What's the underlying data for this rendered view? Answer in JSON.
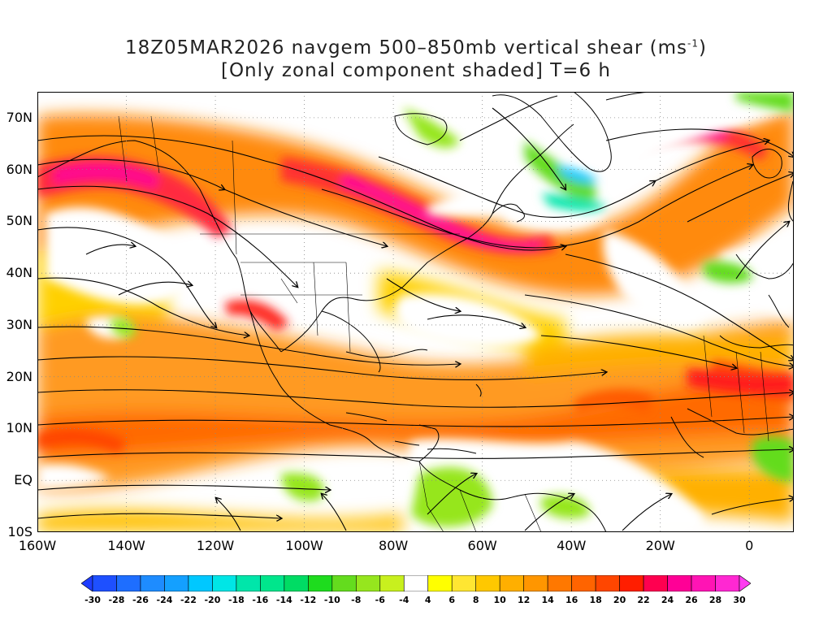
{
  "title": {
    "line1_prefix": "18Z05MAR2026 navgem 500–850mb vertical shear (ms",
    "line1_unit_exp": "-1",
    "line1_suffix": ")",
    "line2": "[Only zonal component shaded] T=6 h"
  },
  "map": {
    "lon_range": [
      -160,
      10
    ],
    "lat_range": [
      -10,
      75
    ],
    "grid": "dotted",
    "y_ticks": [
      {
        "lat": 70,
        "label": "70N"
      },
      {
        "lat": 60,
        "label": "60N"
      },
      {
        "lat": 50,
        "label": "50N"
      },
      {
        "lat": 40,
        "label": "40N"
      },
      {
        "lat": 30,
        "label": "30N"
      },
      {
        "lat": 20,
        "label": "20N"
      },
      {
        "lat": 10,
        "label": "10N"
      },
      {
        "lat": 0,
        "label": "EQ"
      },
      {
        "lat": -10,
        "label": "10S"
      }
    ],
    "x_ticks": [
      {
        "lon": -160,
        "label": "160W"
      },
      {
        "lon": -140,
        "label": "140W"
      },
      {
        "lon": -120,
        "label": "120W"
      },
      {
        "lon": -100,
        "label": "100W"
      },
      {
        "lon": -80,
        "label": "80W"
      },
      {
        "lon": -60,
        "label": "60W"
      },
      {
        "lon": -40,
        "label": "40W"
      },
      {
        "lon": -20,
        "label": "20W"
      },
      {
        "lon": 0,
        "label": "0"
      }
    ]
  },
  "colorbar": {
    "levels": [
      "-30",
      "-28",
      "-26",
      "-24",
      "-22",
      "-20",
      "-18",
      "-16",
      "-14",
      "-12",
      "-10",
      "-8",
      "-6",
      "-4",
      "4",
      "6",
      "8",
      "10",
      "12",
      "14",
      "16",
      "18",
      "20",
      "22",
      "24",
      "26",
      "28",
      "30"
    ],
    "colors": [
      "#1e3cff",
      "#1e50ff",
      "#1e6eff",
      "#1e8cff",
      "#14a0ff",
      "#00c8ff",
      "#00e6e6",
      "#00e6aa",
      "#00e68c",
      "#00dc64",
      "#1edc1e",
      "#64dc1e",
      "#96e61e",
      "#c8f01e",
      "#ffffff",
      "#ffff00",
      "#ffe632",
      "#ffc800",
      "#ffaf00",
      "#ff9600",
      "#ff7800",
      "#ff6400",
      "#ff4600",
      "#ff1e00",
      "#ff0050",
      "#ff0096",
      "#ff14b4",
      "#ff28d2",
      "#ff3cf0"
    ]
  },
  "chart_data": {
    "type": "heatmap",
    "field": "zonal component of 500-850mb vertical shear",
    "units": "ms-1",
    "valid": "18Z05MAR2026",
    "forecast_hour": "T=6 h",
    "features": [
      {
        "name": "NE Pacific jet",
        "lon_range": [
          -160,
          -120
        ],
        "lat_range": [
          52,
          62
        ],
        "value": 28
      },
      {
        "name": "Canada to N Atlantic jet",
        "lon_range": [
          -100,
          -45
        ],
        "lat_range": [
          42,
          58
        ],
        "value": 28
      },
      {
        "name": "N Atlantic ridge jet",
        "lon_range": [
          -40,
          0
        ],
        "lat_range": [
          60,
          70
        ],
        "value": 24
      },
      {
        "name": "subtropical belt",
        "lon_range": [
          -160,
          10
        ],
        "lat_range": [
          5,
          30
        ],
        "value": 18
      },
      {
        "name": "tropical easterlies (S America)",
        "lon_range": [
          -95,
          -50
        ],
        "lat_range": [
          -10,
          5
        ],
        "value": -8
      },
      {
        "name": "Greenland easterlies",
        "lon_range": [
          -50,
          -35
        ],
        "lat_range": [
          55,
          65
        ],
        "value": -12
      }
    ]
  }
}
